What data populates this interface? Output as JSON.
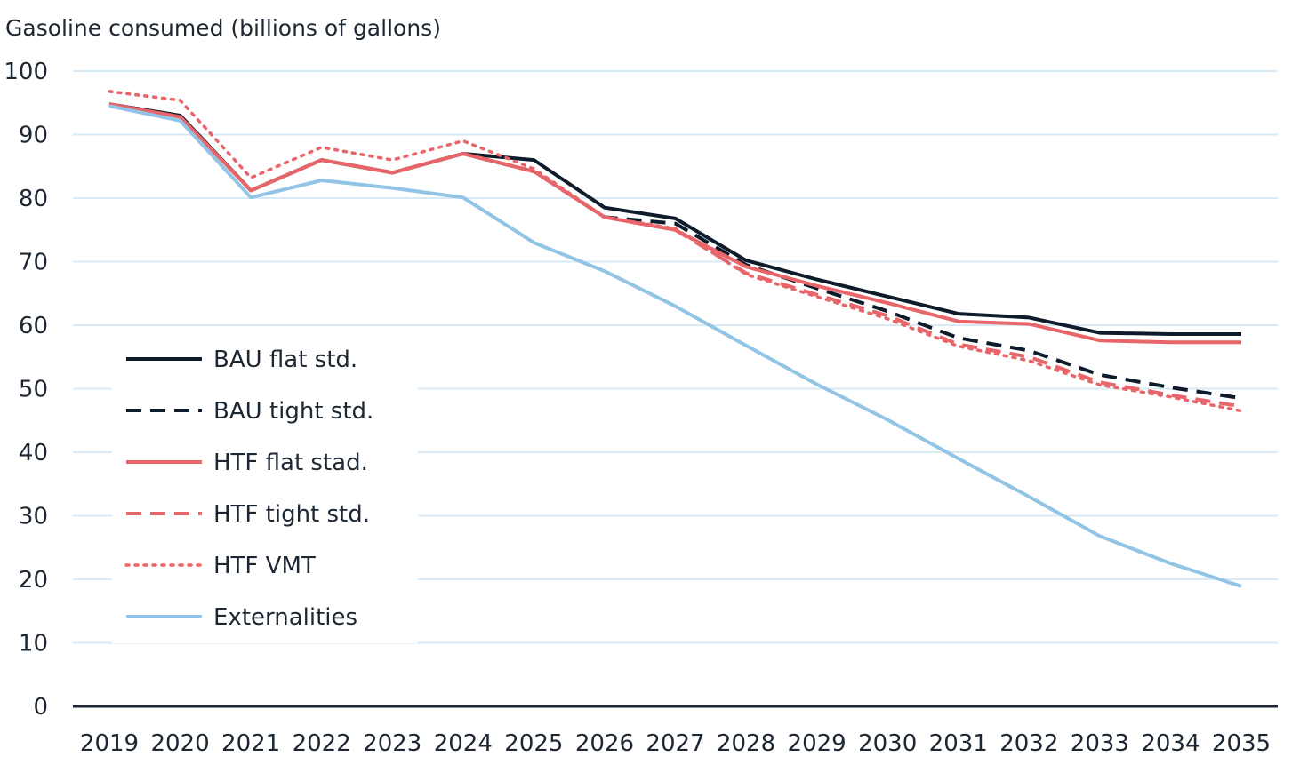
{
  "chart_data": {
    "type": "line",
    "ylabel": "Gasoline consumed (billions of gallons)",
    "xlabel": "",
    "ylim": [
      0,
      100
    ],
    "yticks": [
      0,
      10,
      20,
      30,
      40,
      50,
      60,
      70,
      80,
      90,
      100
    ],
    "grid": true,
    "legend_position": "left",
    "categories": [
      "2019",
      "2020",
      "2021",
      "2022",
      "2023",
      "2024",
      "2025",
      "2026",
      "2027",
      "2028",
      "2029",
      "2030",
      "2031",
      "2032",
      "2033",
      "2034",
      "2035"
    ],
    "series": [
      {
        "name": "BAU flat std.",
        "color": "#0d1b2a",
        "style": "solid",
        "values": [
          94.8,
          93.0,
          81.2,
          86.0,
          84.0,
          87.0,
          86.0,
          78.5,
          76.8,
          70.2,
          67.2,
          64.5,
          61.8,
          61.2,
          58.8,
          58.6,
          58.6
        ]
      },
      {
        "name": "BAU tight std.",
        "color": "#0d1b2a",
        "style": "dashed",
        "values": [
          94.8,
          93.0,
          81.2,
          86.0,
          84.0,
          87.0,
          84.2,
          77.0,
          76.0,
          69.5,
          65.8,
          62.2,
          58.0,
          56.0,
          52.2,
          50.2,
          48.5
        ]
      },
      {
        "name": "HTF flat stad.",
        "color": "#e8656a",
        "style": "solid",
        "values": [
          94.8,
          92.8,
          81.2,
          86.0,
          84.0,
          87.0,
          84.2,
          77.0,
          75.0,
          69.2,
          66.2,
          63.5,
          60.6,
          60.2,
          57.6,
          57.3,
          57.3
        ]
      },
      {
        "name": "HTF tight std.",
        "color": "#e8656a",
        "style": "dashed",
        "values": [
          94.8,
          92.8,
          81.2,
          86.0,
          84.0,
          87.0,
          84.2,
          77.0,
          75.0,
          68.2,
          64.8,
          61.5,
          57.0,
          55.0,
          51.0,
          49.0,
          47.2
        ]
      },
      {
        "name": "HTF VMT",
        "color": "#e8656a",
        "style": "dotted",
        "values": [
          96.8,
          95.4,
          83.2,
          88.0,
          86.0,
          89.0,
          84.6,
          77.0,
          75.2,
          68.0,
          64.5,
          61.0,
          56.7,
          54.4,
          50.6,
          48.7,
          46.5
        ]
      },
      {
        "name": "Externalities",
        "color": "#92c4e6",
        "style": "solid",
        "values": [
          94.5,
          92.2,
          80.1,
          82.8,
          81.6,
          80.1,
          73.0,
          68.5,
          63.0,
          56.8,
          50.7,
          45.1,
          39.0,
          33.0,
          26.8,
          22.5,
          18.9
        ]
      }
    ]
  }
}
